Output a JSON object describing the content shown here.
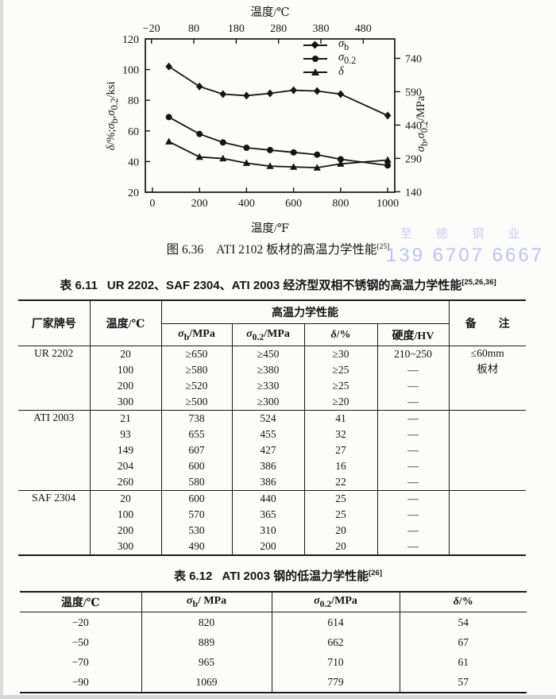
{
  "figure": {
    "caption_prefix": "图 6.36",
    "caption_text": "ATI 2102 板材的高温力学性能",
    "caption_ref": "[25]"
  },
  "chart_data": {
    "type": "line",
    "x": [
      70,
      200,
      300,
      400,
      500,
      600,
      700,
      800,
      1000
    ],
    "series": [
      {
        "name": "σb",
        "marker": "diamond",
        "values": [
          102,
          89,
          84,
          83,
          84.5,
          86.5,
          86,
          84,
          70
        ]
      },
      {
        "name": "σ0.2",
        "marker": "circle",
        "values": [
          69,
          58,
          52.5,
          49,
          47.5,
          46,
          44.5,
          41.5,
          37.5
        ]
      },
      {
        "name": "δ",
        "marker": "triangle",
        "values": [
          53,
          43,
          42,
          39,
          37,
          36.5,
          36,
          38.5,
          41
        ]
      }
    ],
    "x_bottom": {
      "label": "温度/℉",
      "ticks": [
        0,
        200,
        400,
        600,
        800,
        1000
      ],
      "range": [
        -30,
        1030
      ]
    },
    "x_top": {
      "label": "温度/℃",
      "ticks": [
        -20,
        80,
        180,
        280,
        380,
        480
      ]
    },
    "y_left": {
      "label": "δ/%;σb,σ0.2/ksi",
      "ticks": [
        20,
        40,
        60,
        80,
        100,
        120
      ],
      "range": [
        20,
        120
      ]
    },
    "y_right": {
      "label": "σb,σ0.2/MPa",
      "ticks": [
        140,
        290,
        440,
        590,
        740
      ],
      "mpa_per_ksi": 6.895
    },
    "legend_position": "top-right-inside",
    "grid": false,
    "line_color": "#151515"
  },
  "table1": {
    "title_prefix": "表 6.11",
    "title_text": "UR 2202、SAF 2304、ATI 2003 经济型双相不锈钢的高温力学性能",
    "title_ref": "[25,26,36]",
    "header": {
      "brand": "厂家牌号",
      "temp": "温度/℃",
      "group": "高温力学性能",
      "cols": [
        "σb/MPa",
        "σ0.2/MPa",
        "δ/%",
        "硬度/HV"
      ],
      "remark": "备　　注"
    },
    "groups": [
      {
        "brand": "UR 2202",
        "remark": [
          "≤60mm",
          "板材"
        ],
        "rows": [
          [
            "20",
            "≥650",
            "≥450",
            "≥30",
            "210~250"
          ],
          [
            "100",
            "≥580",
            "≥380",
            "≥25",
            "—"
          ],
          [
            "200",
            "≥520",
            "≥330",
            "≥25",
            "—"
          ],
          [
            "300",
            "≥500",
            "≥300",
            "≥20",
            "—"
          ]
        ]
      },
      {
        "brand": "ATI 2003",
        "remark": [],
        "rows": [
          [
            "21",
            "738",
            "524",
            "41",
            "—"
          ],
          [
            "93",
            "655",
            "455",
            "32",
            "—"
          ],
          [
            "149",
            "607",
            "427",
            "27",
            "—"
          ],
          [
            "204",
            "600",
            "386",
            "16",
            "—"
          ],
          [
            "260",
            "580",
            "386",
            "22",
            "—"
          ]
        ]
      },
      {
        "brand": "SAF 2304",
        "remark": [],
        "rows": [
          [
            "20",
            "600",
            "440",
            "25",
            "—"
          ],
          [
            "100",
            "570",
            "365",
            "25",
            "—"
          ],
          [
            "200",
            "530",
            "310",
            "20",
            "—"
          ],
          [
            "300",
            "490",
            "200",
            "20",
            "—"
          ]
        ]
      }
    ]
  },
  "table2": {
    "title_prefix": "表 6.12",
    "title_text": "ATI 2003 钢的低温力学性能",
    "title_ref": "[26]",
    "headers": [
      "温度/℃",
      "σb/ MPa",
      "σ0.2/MPa",
      "δ/%"
    ],
    "rows": [
      [
        "−20",
        "820",
        "614",
        "54"
      ],
      [
        "−50",
        "889",
        "662",
        "67"
      ],
      [
        "−70",
        "965",
        "710",
        "61"
      ],
      [
        "−90",
        "1069",
        "779",
        "57"
      ]
    ]
  },
  "watermark": {
    "line1": "至 德 钢 业",
    "line2": "139 6707 6667",
    "color": "#96a0e2"
  }
}
